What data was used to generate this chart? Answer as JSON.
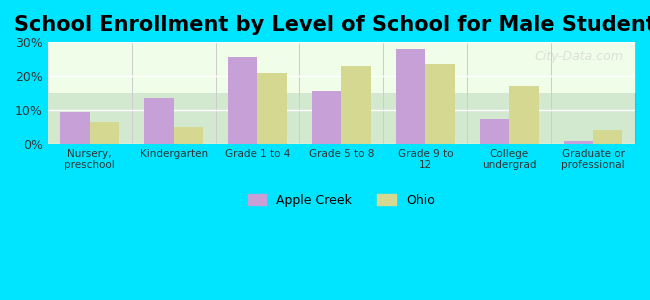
{
  "title": "School Enrollment by Level of School for Male Students",
  "categories": [
    "Nursery,\npreschool",
    "Kindergarten",
    "Grade 1 to 4",
    "Grade 5 to 8",
    "Grade 9 to\n12",
    "College\nundergrad",
    "Graduate or\nprofessional"
  ],
  "apple_creek": [
    9.5,
    13.5,
    25.5,
    15.5,
    28.0,
    7.5,
    1.0
  ],
  "ohio": [
    6.5,
    5.0,
    21.0,
    23.0,
    23.5,
    17.0,
    4.0
  ],
  "apple_creek_color": "#c8a0d8",
  "ohio_color": "#d4d890",
  "background_outer": "#00e5ff",
  "background_inner": "#f0ffe8",
  "ylim": [
    0,
    30
  ],
  "yticks": [
    0,
    10,
    20,
    30
  ],
  "ytick_labels": [
    "0%",
    "10%",
    "20%",
    "30%"
  ],
  "title_fontsize": 15,
  "legend_labels": [
    "Apple Creek",
    "Ohio"
  ],
  "bar_width": 0.35,
  "watermark": "City-Data.com"
}
